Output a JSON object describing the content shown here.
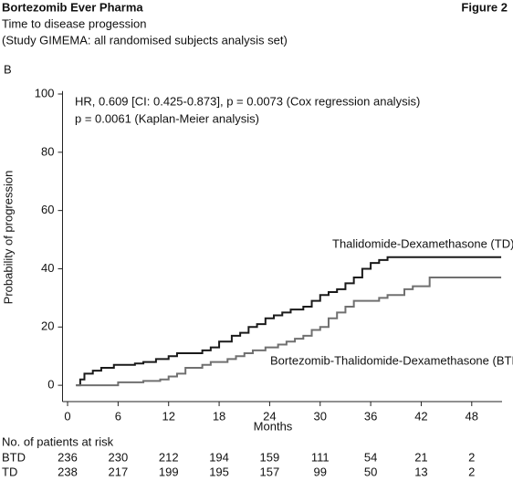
{
  "header": {
    "title": "Bortezomib Ever Pharma",
    "figure": "Figure 2",
    "subtitle": "Time to disease progession",
    "note": "(Study GIMEMA: all randomised subjects analysis set)"
  },
  "chart_data": {
    "type": "step",
    "panel": "B",
    "ylabel": "Probability of progression",
    "xlabel": "Months",
    "annotations": [
      "HR, 0.609 [CI: 0.425-0.873], p = 0.0073 (Cox regression analysis)",
      "p = 0.0061 (Kaplan-Meier analysis)"
    ],
    "xlim": [
      -0.6,
      51.6
    ],
    "ylim": [
      -5.6,
      101
    ],
    "xticks": [
      0,
      6,
      12,
      18,
      24,
      30,
      36,
      42,
      48
    ],
    "yticks": [
      0,
      20,
      40,
      60,
      80,
      100
    ],
    "series": [
      {
        "name": "Thalidomide-Dexamethasone  (TD)",
        "color": "#1a1a1a",
        "x": [
          1,
          1.5,
          2,
          3,
          4,
          5.5,
          8,
          9,
          10.5,
          12,
          13,
          16,
          17,
          18,
          19.5,
          20.5,
          21.5,
          22.5,
          23.5,
          24.5,
          25.5,
          26.5,
          28,
          29,
          30,
          31,
          32,
          33,
          34,
          35,
          36,
          37,
          38,
          51.5
        ],
        "y": [
          0,
          2,
          4,
          5,
          6,
          7,
          7.5,
          8,
          9,
          10,
          11,
          12,
          13,
          15,
          17,
          18,
          20,
          21,
          23,
          24,
          25,
          26,
          27,
          29,
          31,
          32,
          33,
          35,
          37,
          40,
          42,
          43,
          44,
          44
        ]
      },
      {
        "name": "Bortezomib-Thalidomide-Dexamethasone  (BTD)",
        "color": "#707070",
        "x": [
          1,
          6,
          9,
          11,
          12,
          13,
          14,
          16,
          17,
          19,
          20,
          21,
          22,
          23.5,
          25,
          26,
          27,
          28,
          29,
          30,
          31,
          32,
          33,
          34,
          37,
          38,
          40,
          41,
          43,
          51.5
        ],
        "y": [
          0,
          1,
          1.5,
          2,
          3,
          4,
          6,
          7,
          8,
          9,
          10,
          11,
          12,
          13,
          14,
          15,
          16,
          17,
          19,
          20,
          23,
          25,
          27,
          29,
          30,
          31,
          33,
          34,
          37,
          37
        ]
      }
    ],
    "risk_table": {
      "title": "No. of patients at risk",
      "rows": [
        {
          "name": "BTD",
          "values": [
            236,
            230,
            212,
            194,
            159,
            111,
            54,
            21,
            2
          ]
        },
        {
          "name": "TD",
          "values": [
            238,
            217,
            199,
            195,
            157,
            99,
            50,
            13,
            2
          ]
        }
      ]
    }
  }
}
